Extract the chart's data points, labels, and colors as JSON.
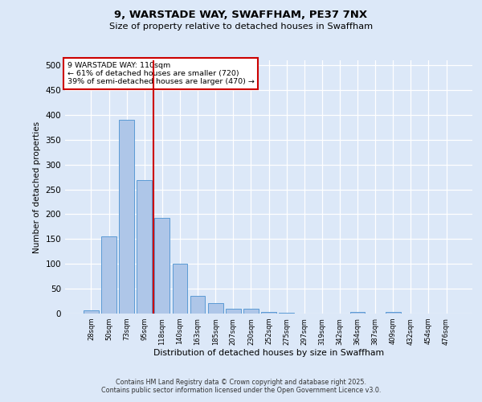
{
  "title1": "9, WARSTADE WAY, SWAFFHAM, PE37 7NX",
  "title2": "Size of property relative to detached houses in Swaffham",
  "xlabel": "Distribution of detached houses by size in Swaffham",
  "ylabel": "Number of detached properties",
  "categories": [
    "28sqm",
    "50sqm",
    "73sqm",
    "95sqm",
    "118sqm",
    "140sqm",
    "163sqm",
    "185sqm",
    "207sqm",
    "230sqm",
    "252sqm",
    "275sqm",
    "297sqm",
    "319sqm",
    "342sqm",
    "364sqm",
    "387sqm",
    "409sqm",
    "432sqm",
    "454sqm",
    "476sqm"
  ],
  "values": [
    6,
    155,
    390,
    268,
    193,
    101,
    36,
    21,
    10,
    9,
    4,
    1,
    0,
    0,
    0,
    3,
    0,
    3,
    0,
    0,
    0
  ],
  "bar_color": "#aec6e8",
  "bar_edge_color": "#5b9bd5",
  "vline_color": "#cc0000",
  "annotation_text": "9 WARSTADE WAY: 110sqm\n← 61% of detached houses are smaller (720)\n39% of semi-detached houses are larger (470) →",
  "annotation_box_color": "#ffffff",
  "annotation_box_edge_color": "#cc0000",
  "bg_color": "#dce8f8",
  "plot_bg_color": "#dce8f8",
  "grid_color": "#ffffff",
  "footer1": "Contains HM Land Registry data © Crown copyright and database right 2025.",
  "footer2": "Contains public sector information licensed under the Open Government Licence v3.0.",
  "ylim": [
    0,
    510
  ],
  "yticks": [
    0,
    50,
    100,
    150,
    200,
    250,
    300,
    350,
    400,
    450,
    500
  ]
}
